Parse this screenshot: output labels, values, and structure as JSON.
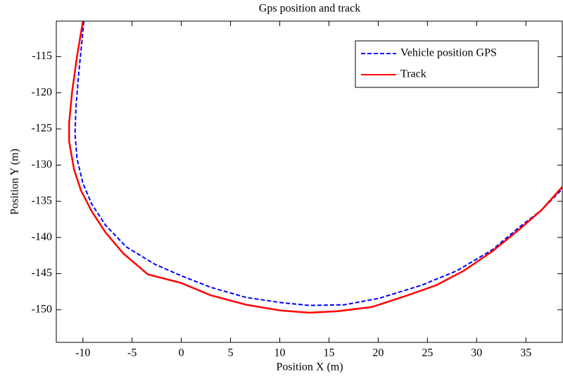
{
  "chart_data": {
    "type": "line",
    "title": "Gps position and track",
    "x_label": "Position X (m)",
    "y_label": "Position Y (m)",
    "xlim": [
      -12.7,
      38.7
    ],
    "ylim": [
      -154.5,
      -110.1
    ],
    "xticks": [
      -10,
      -5,
      0,
      5,
      10,
      15,
      20,
      25,
      30,
      35
    ],
    "yticks": [
      -150,
      -145,
      -140,
      -135,
      -130,
      -125,
      -120,
      -115
    ],
    "legend": "upper right",
    "series": [
      {
        "name": "Vehicle position GPS",
        "color": "#0000ff",
        "dashed": true,
        "x": [
          -9.9,
          -10.4,
          -10.7,
          -10.8,
          -10.6,
          -10,
          -9.1,
          -7.7,
          -5.6,
          -2.7,
          0,
          3,
          6.6,
          10.1,
          13,
          16.6,
          20.1,
          24.4,
          28,
          31.6,
          34.4,
          36.6,
          38.7
        ],
        "values": [
          -110.1,
          -117,
          -121.8,
          -125.7,
          -129.1,
          -132.5,
          -135.4,
          -138.3,
          -141.3,
          -143.7,
          -145.3,
          -146.9,
          -148.3,
          -149,
          -149.4,
          -149.3,
          -148.4,
          -146.6,
          -144.6,
          -141.7,
          -138.5,
          -136.2,
          -133.3
        ]
      },
      {
        "name": "Track",
        "color": "#ff0000",
        "dashed": false,
        "x": [
          -10,
          -10.6,
          -11.1,
          -11.4,
          -11.4,
          -10.9,
          -10.2,
          -9.1,
          -7.7,
          -5.9,
          -3.4,
          0,
          3,
          6.6,
          10.1,
          13,
          15.9,
          19.4,
          23,
          25.9,
          28.7,
          31.6,
          34.4,
          36.6,
          38.7
        ],
        "values": [
          -110.1,
          -115,
          -119.9,
          -124.2,
          -126.7,
          -130.6,
          -133.5,
          -136.4,
          -139.3,
          -142.2,
          -145.1,
          -146.3,
          -148,
          -149.3,
          -150.1,
          -150.4,
          -150.2,
          -149.6,
          -148,
          -146.6,
          -144.6,
          -141.9,
          -138.8,
          -136.2,
          -133
        ]
      }
    ]
  }
}
